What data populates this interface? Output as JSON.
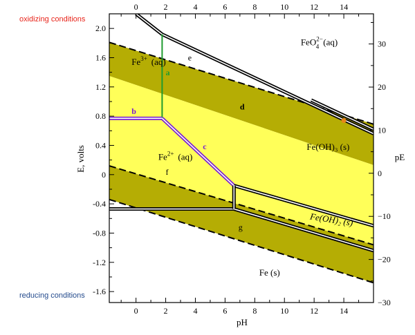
{
  "notes": {
    "oxidizing": "oxidizing conditions",
    "reducing": "reducing conditions",
    "oxidizing_color": "#e8251b",
    "reducing_color": "#234a8c"
  },
  "chart_data": {
    "type": "line",
    "title": "",
    "xlabel": "pH",
    "ylabel": "E, volts",
    "y2label": "pE",
    "xlim": [
      -1.8,
      16
    ],
    "ylim": [
      -1.75,
      2.2
    ],
    "y2lim": [
      -30,
      37
    ],
    "x_ticks": [
      "0",
      "2",
      "4",
      "6",
      "8",
      "10",
      "12",
      "14"
    ],
    "y_ticks": [
      "2.0",
      "1.6",
      "1.2",
      "0.8",
      "0.4",
      "0",
      "-0.4",
      "-0.8",
      "-1.2",
      "-1.6"
    ],
    "y2_ticks": [
      "30",
      "20",
      "10",
      "0",
      "−10",
      "−20",
      "−30"
    ],
    "colors": {
      "olive": "#b5ad04",
      "yellow": "#ffff59",
      "purple": "#7a1fd0",
      "green": "#1f9b2f",
      "orange_dot": "#e8861a"
    },
    "water_band_upper": [
      [
        -1.8,
        1.81
      ],
      [
        16,
        0.69
      ]
    ],
    "water_band_lower": [
      [
        -1.8,
        1.35
      ],
      [
        16,
        0.13
      ]
    ],
    "hydrogen_band_upper": [
      [
        -1.8,
        0.12
      ],
      [
        16,
        -0.96
      ]
    ],
    "hydrogen_band_lower": [
      [
        -1.8,
        -0.34
      ],
      [
        16,
        -1.48
      ]
    ],
    "boundaries": [
      {
        "id": "Fe3+/FeO4",
        "points": [
          [
            0,
            2.2
          ],
          [
            1.76,
            1.92
          ],
          [
            16,
            0.56
          ]
        ]
      },
      {
        "id": "Fe(OH)3/FeO4",
        "points": [
          [
            11.8,
            1.02
          ],
          [
            16,
            0.62
          ]
        ]
      },
      {
        "id": "a",
        "points": [
          [
            1.76,
            0.76
          ],
          [
            1.76,
            1.92
          ]
        ],
        "color": "green"
      },
      {
        "id": "b",
        "points": [
          [
            -1.8,
            0.77
          ],
          [
            1.76,
            0.77
          ]
        ],
        "color": "purple"
      },
      {
        "id": "c",
        "points": [
          [
            1.76,
            0.77
          ],
          [
            6.6,
            -0.15
          ]
        ],
        "color": "purple"
      },
      {
        "id": "Fe(OH)3/Fe(OH)2",
        "points": [
          [
            6.6,
            -0.15
          ],
          [
            16,
            -0.7
          ]
        ]
      },
      {
        "id": "Fe2+/Fe",
        "points": [
          [
            -1.8,
            -0.47
          ],
          [
            6.6,
            -0.47
          ]
        ]
      },
      {
        "id": "Fe(OH)2/Fe",
        "points": [
          [
            6.6,
            -0.47
          ],
          [
            16,
            -1.04
          ]
        ]
      },
      {
        "id": "Fe2+/Fe(OH)2",
        "points": [
          [
            6.6,
            -0.15
          ],
          [
            6.6,
            -0.47
          ]
        ]
      }
    ],
    "dashed_lines": [
      {
        "points": [
          [
            -1.8,
            1.81
          ],
          [
            16,
            0.69
          ]
        ]
      },
      {
        "points": [
          [
            -1.8,
            0.12
          ],
          [
            16,
            -0.96
          ]
        ]
      },
      {
        "points": [
          [
            -1.8,
            -0.34
          ],
          [
            16,
            -1.48
          ]
        ]
      }
    ],
    "species_labels": [
      {
        "text": "FeO",
        "sup": "2−",
        "sub": "4",
        "rest": "(aq)",
        "x": 11.1,
        "y": 1.77
      },
      {
        "text": "Fe",
        "sup": "3+",
        "rest": "(aq)",
        "x": -0.3,
        "y": 1.5
      },
      {
        "text": "Fe",
        "sup": "2+",
        "rest": "(aq)",
        "x": 1.5,
        "y": 0.2
      },
      {
        "text": "Fe(OH)₃ (s)",
        "x": 11.5,
        "y": 0.34
      },
      {
        "text": "Fe(OH)₂ (s)",
        "x": 11.7,
        "y": -0.61
      },
      {
        "text": "Fe (s)",
        "x": 8.3,
        "y": -1.38
      }
    ],
    "line_labels": [
      {
        "text": "a",
        "x": 2.0,
        "y": 1.36
      },
      {
        "text": "b",
        "x": -0.3,
        "y": 0.83
      },
      {
        "text": "c",
        "x": 4.5,
        "y": 0.35
      },
      {
        "text": "d",
        "x": 7.0,
        "y": 0.89
      },
      {
        "text": "e",
        "x": 3.5,
        "y": 1.56
      },
      {
        "text": "f",
        "x": 2.0,
        "y": 0.0
      },
      {
        "text": "g",
        "x": 6.9,
        "y": -0.76
      }
    ],
    "highlight_point": {
      "x": 14,
      "y": 0.74
    }
  }
}
